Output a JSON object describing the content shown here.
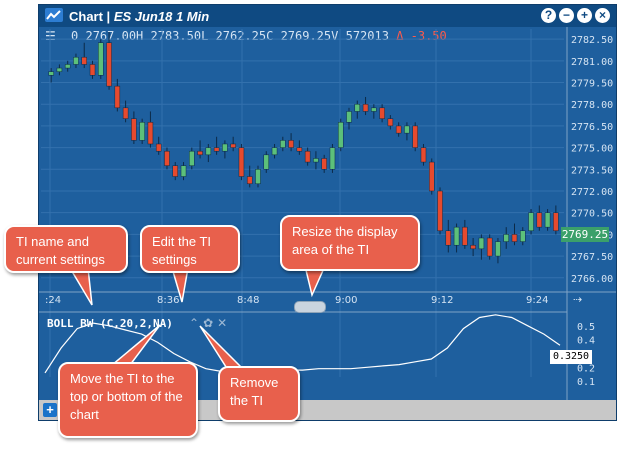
{
  "window": {
    "title_prefix": "Chart | ",
    "title_symbol": "ES Jun18 1 Min",
    "buttons": [
      "?",
      "−",
      "+",
      "×"
    ]
  },
  "ohlc": {
    "menu_icon": "☰",
    "volume_prefix": "0",
    "open": "2767.00H",
    "high": "2783.50L",
    "low": "2762.25C",
    "close": "2769.25V",
    "volume": "572013",
    "change": "Δ -3.50"
  },
  "last_price": "2769.25",
  "indicator": {
    "label": "BOLL BW (C,20,2,NA)",
    "value": "0.3250",
    "axis_ticks": [
      "0.5",
      "0.4",
      "0.2",
      "0.1"
    ]
  },
  "callouts": {
    "ti_name": "TI name and current settings",
    "edit": "Edit the TI settings",
    "resize": "Resize the display area of the TI",
    "move": "Move the TI to the top or bottom of the chart",
    "remove": "Remove the TI"
  },
  "colors": {
    "background": "#1e5f9e",
    "up_candle": "#5cc07a",
    "down_candle": "#e64a2e",
    "callout": "#e8604c",
    "last_price": "#3ba06a"
  },
  "chart_data": {
    "type": "candlestick",
    "x_ticks": [
      ":24",
      "8:36",
      "8:48",
      "9:00",
      "9:12",
      "9:24"
    ],
    "y_ticks": [
      2782.5,
      2781.0,
      2779.5,
      2778.0,
      2776.5,
      2775.0,
      2773.5,
      2772.0,
      2770.5,
      2769.0,
      2767.5,
      2766.0
    ],
    "ylim": [
      2765.5,
      2783.2
    ],
    "candles": [
      [
        2780.0,
        2780.5,
        2779.5,
        2780.25
      ],
      [
        2780.25,
        2780.75,
        2780.0,
        2780.5
      ],
      [
        2780.5,
        2781.0,
        2780.25,
        2780.75
      ],
      [
        2780.75,
        2781.5,
        2780.5,
        2781.25
      ],
      [
        2781.25,
        2782.25,
        2780.5,
        2780.75
      ],
      [
        2780.75,
        2781.0,
        2779.75,
        2780.0
      ],
      [
        2780.0,
        2782.5,
        2779.75,
        2782.25
      ],
      [
        2782.25,
        2783.0,
        2779.0,
        2779.25
      ],
      [
        2779.25,
        2779.75,
        2777.5,
        2777.75
      ],
      [
        2777.75,
        2778.25,
        2776.75,
        2777.0
      ],
      [
        2777.0,
        2777.5,
        2775.25,
        2775.5
      ],
      [
        2775.5,
        2777.0,
        2775.25,
        2776.75
      ],
      [
        2776.75,
        2777.5,
        2775.0,
        2775.25
      ],
      [
        2775.25,
        2775.75,
        2774.5,
        2774.75
      ],
      [
        2774.75,
        2775.0,
        2773.5,
        2773.75
      ],
      [
        2773.75,
        2774.0,
        2772.75,
        2773.0
      ],
      [
        2773.0,
        2774.0,
        2772.75,
        2773.75
      ],
      [
        2773.75,
        2775.0,
        2773.5,
        2774.75
      ],
      [
        2774.75,
        2775.5,
        2774.25,
        2774.5
      ],
      [
        2774.5,
        2775.25,
        2774.0,
        2775.0
      ],
      [
        2775.0,
        2775.75,
        2774.5,
        2774.75
      ],
      [
        2774.75,
        2775.5,
        2774.25,
        2775.25
      ],
      [
        2775.25,
        2775.75,
        2774.75,
        2775.0
      ],
      [
        2775.0,
        2775.25,
        2772.75,
        2773.0
      ],
      [
        2773.0,
        2773.75,
        2772.25,
        2772.5
      ],
      [
        2772.5,
        2773.75,
        2772.25,
        2773.5
      ],
      [
        2773.5,
        2774.75,
        2773.25,
        2774.5
      ],
      [
        2774.5,
        2775.25,
        2774.25,
        2775.0
      ],
      [
        2775.0,
        2775.75,
        2774.75,
        2775.5
      ],
      [
        2775.5,
        2776.0,
        2774.75,
        2775.0
      ],
      [
        2775.0,
        2775.5,
        2774.5,
        2774.75
      ],
      [
        2774.75,
        2775.0,
        2773.75,
        2774.0
      ],
      [
        2774.0,
        2774.75,
        2773.5,
        2774.25
      ],
      [
        2774.25,
        2774.5,
        2773.25,
        2773.5
      ],
      [
        2773.5,
        2775.25,
        2773.25,
        2775.0
      ],
      [
        2775.0,
        2777.0,
        2774.75,
        2776.75
      ],
      [
        2776.75,
        2777.75,
        2776.25,
        2777.5
      ],
      [
        2777.5,
        2778.25,
        2777.0,
        2778.0
      ],
      [
        2778.0,
        2778.5,
        2777.25,
        2777.5
      ],
      [
        2777.5,
        2778.0,
        2777.0,
        2777.75
      ],
      [
        2777.75,
        2778.0,
        2776.75,
        2777.0
      ],
      [
        2777.0,
        2777.25,
        2776.25,
        2776.5
      ],
      [
        2776.5,
        2776.75,
        2775.75,
        2776.0
      ],
      [
        2776.0,
        2776.75,
        2775.5,
        2776.5
      ],
      [
        2776.5,
        2776.75,
        2774.75,
        2775.0
      ],
      [
        2775.0,
        2775.25,
        2773.75,
        2774.0
      ],
      [
        2774.0,
        2774.25,
        2771.75,
        2772.0
      ],
      [
        2772.0,
        2772.25,
        2769.0,
        2769.25
      ],
      [
        2769.25,
        2770.0,
        2767.75,
        2768.25
      ],
      [
        2768.25,
        2769.75,
        2767.75,
        2769.5
      ],
      [
        2769.5,
        2770.0,
        2768.0,
        2768.25
      ],
      [
        2768.25,
        2768.75,
        2767.5,
        2768.0
      ],
      [
        2768.0,
        2769.0,
        2767.25,
        2768.75
      ],
      [
        2768.75,
        2769.0,
        2767.25,
        2767.5
      ],
      [
        2767.5,
        2768.75,
        2767.0,
        2768.5
      ],
      [
        2768.5,
        2769.5,
        2768.0,
        2769.0
      ],
      [
        2769.0,
        2769.75,
        2768.25,
        2768.5
      ],
      [
        2768.5,
        2769.5,
        2768.25,
        2769.25
      ],
      [
        2769.25,
        2770.75,
        2769.0,
        2770.5
      ],
      [
        2770.5,
        2771.0,
        2769.25,
        2769.5
      ],
      [
        2769.5,
        2770.75,
        2769.25,
        2770.5
      ],
      [
        2770.5,
        2771.0,
        2769.0,
        2769.25
      ]
    ],
    "indicator_line": [
      0.16,
      0.34,
      0.48,
      0.52,
      0.5,
      0.47,
      0.44,
      0.38,
      0.3,
      0.24,
      0.19,
      0.17,
      0.16,
      0.16,
      0.17,
      0.18,
      0.18,
      0.19,
      0.19,
      0.19,
      0.2,
      0.21,
      0.22,
      0.24,
      0.26,
      0.34,
      0.48,
      0.56,
      0.58,
      0.56,
      0.5,
      0.44,
      0.36
    ]
  }
}
